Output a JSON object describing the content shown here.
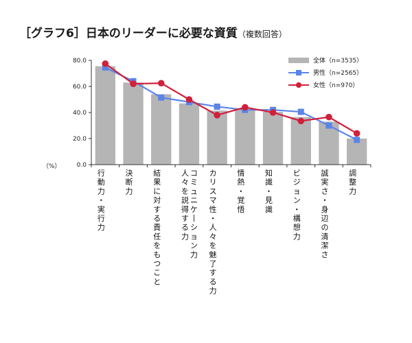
{
  "title": {
    "bracket_open": "［",
    "main": "グラフ6",
    "bracket_close": "］日本のリーダーに必要な資質",
    "sub": "（複数回答）"
  },
  "unit_label": "（%）",
  "colors": {
    "all": "#b5b5b5",
    "male": "#5b84e8",
    "female": "#d0203a"
  },
  "chart_data": {
    "type": "bar",
    "title": "［グラフ6］日本のリーダーに必要な資質（複数回答）",
    "ylabel": "（%）",
    "ylim": [
      0,
      80
    ],
    "yticks": [
      "0.0",
      "20.0",
      "40.0",
      "60.0",
      "80.0"
    ],
    "grid": false,
    "legend_position": "top-right",
    "categories": [
      "行動力・実行力",
      "決断力",
      "結果に対する責任をもつこと",
      "人々を説得する力 コミュニケーション力",
      "カリスマ性・人々を魅了する力",
      "情熱・覚悟",
      "知識・見識",
      "ビジョン・構想力",
      "誠実さ・身辺の清潔さ",
      "調整力"
    ],
    "series": [
      {
        "name": "全体（n=3535）",
        "type": "bar",
        "values": [
          75.5,
          63.0,
          54.0,
          47.0,
          41.5,
          42.0,
          40.5,
          36.5,
          33.0,
          20.0
        ]
      },
      {
        "name": "男性（n=2565）",
        "type": "line",
        "marker": "square",
        "values": [
          74.5,
          64.0,
          51.5,
          48.0,
          44.5,
          42.0,
          42.0,
          40.5,
          30.0,
          19.0
        ]
      },
      {
        "name": "女性（n=970）",
        "type": "line",
        "marker": "circle",
        "values": [
          77.5,
          62.0,
          62.5,
          50.0,
          38.0,
          44.0,
          40.0,
          33.5,
          36.5,
          24.0
        ]
      }
    ]
  }
}
